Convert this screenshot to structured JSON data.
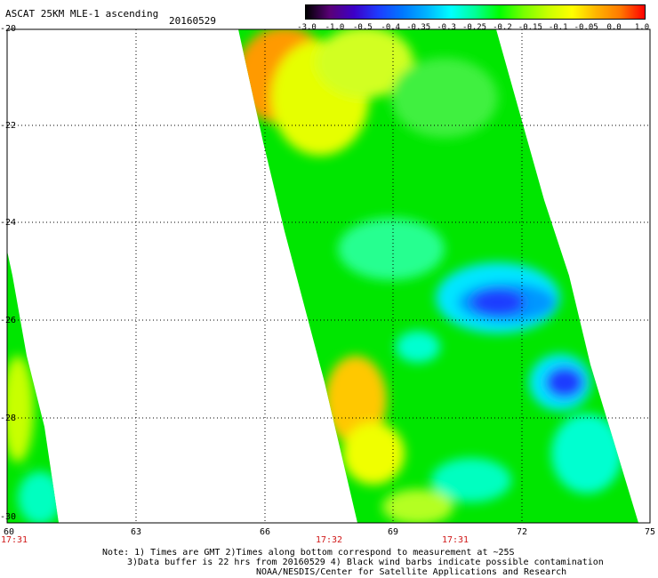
{
  "title": "ASCAT 25KM MLE-1 ascending",
  "date": "20160529",
  "colorbar": {
    "labels": [
      "-3.0",
      "-1.0",
      "-0.5",
      "-0.4",
      "-0.35",
      "-0.3",
      "-0.25",
      "-0.2",
      "-0.15",
      "-0.1",
      "-0.05",
      "0.0",
      "1.0"
    ],
    "colors": [
      "#000000",
      "#5a0078",
      "#3c00c8",
      "#1e3cff",
      "#0078ff",
      "#00b4ff",
      "#00ffff",
      "#00ff96",
      "#00ff00",
      "#78ff00",
      "#c8ff00",
      "#ffff00",
      "#ffb400",
      "#ff7800",
      "#ff0000"
    ]
  },
  "axes": {
    "lat_labels": [
      "-20",
      "-22",
      "-24",
      "-26",
      "-28",
      "-30"
    ],
    "lon_labels": [
      "60",
      "63",
      "66",
      "69",
      "72",
      "75"
    ],
    "time_labels": [
      "17:31",
      "17:32",
      "17:31"
    ]
  },
  "notes": {
    "line1": "Note: 1) Times are GMT 2)Times along bottom correspond to measurement at ~25S",
    "line2": "3)Data buffer is 22 hrs from 20160529 4) Black wind barbs indicate possible contamination",
    "line3": "NOAA/NESDIS/Center for Satellite Applications and Research"
  },
  "map_colors": {
    "background": "#00e600",
    "light_green": "#5af05a",
    "cyan": "#00ffff",
    "blue": "#1e3cff",
    "yellow": "#ffff00",
    "orange": "#ff9a00"
  }
}
